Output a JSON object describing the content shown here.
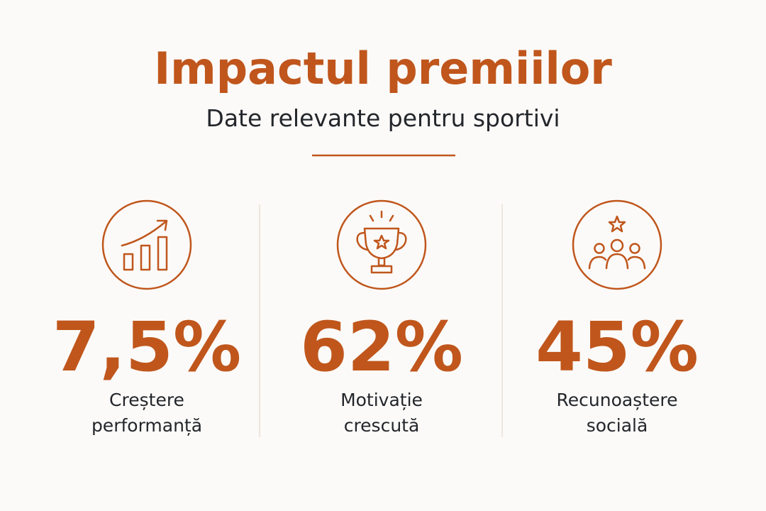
{
  "header": {
    "title": "Impactul premiilor",
    "subtitle": "Date relevante pentru sportivi"
  },
  "stats": [
    {
      "value": "7,5%",
      "label": [
        "Creștere",
        "performanță"
      ]
    },
    {
      "value": "62%",
      "label": [
        "Motivație",
        "crescută"
      ]
    },
    {
      "value": "45%",
      "label": [
        "Recunoaștere",
        "socială"
      ]
    }
  ]
}
